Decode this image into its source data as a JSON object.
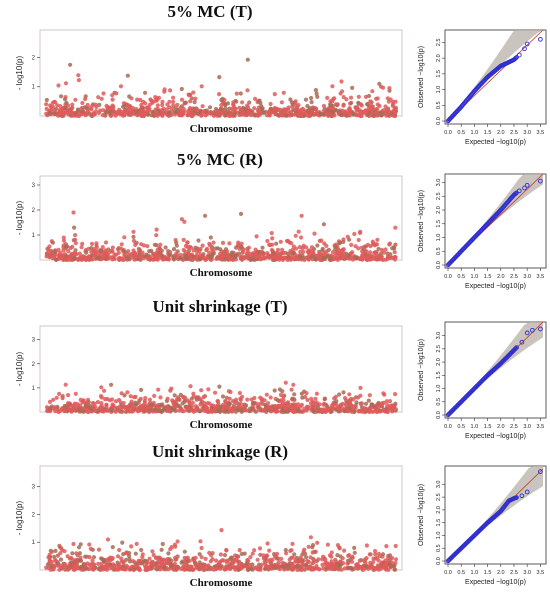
{
  "chart_data": [
    {
      "type": "scatter",
      "title": "5% MC (T)",
      "manhattan": {
        "xlabel": "Chromosome",
        "ylabel": "- log10(p)",
        "yticks": [
          1,
          2
        ],
        "ylim": [
          0,
          2.8
        ],
        "n_points": 900,
        "seed": 11
      },
      "qq": {
        "xlabel": "Expected −log10(p)",
        "ylabel": "Observed −log10(p)",
        "xticks": [
          "0.0",
          "0.5",
          "1.0",
          "1.5",
          "2.0",
          "2.5",
          "3.0",
          "3.5"
        ],
        "yticks": [
          "0.0",
          "0.5",
          "1.0",
          "1.5",
          "2.0",
          "2.5"
        ],
        "xlim": [
          0,
          3.6
        ],
        "ylim": [
          0,
          2.8
        ],
        "points": [
          [
            0.0,
            0.0
          ],
          [
            0.5,
            0.45
          ],
          [
            1.0,
            0.95
          ],
          [
            1.5,
            1.4
          ],
          [
            2.0,
            1.75
          ],
          [
            2.5,
            1.95
          ],
          [
            2.7,
            2.1
          ],
          [
            2.9,
            2.3
          ],
          [
            3.0,
            2.45
          ],
          [
            3.5,
            2.6
          ]
        ]
      }
    },
    {
      "type": "scatter",
      "title": "5% MC (R)",
      "manhattan": {
        "xlabel": "Chromosome",
        "ylabel": "- log10(p)",
        "yticks": [
          1,
          2,
          3
        ],
        "ylim": [
          0,
          3.2
        ],
        "n_points": 900,
        "seed": 23
      },
      "qq": {
        "xlabel": "Expected −log10(p)",
        "ylabel": "Observed −log10(p)",
        "xticks": [
          "0.0",
          "0.5",
          "1.0",
          "1.5",
          "2.0",
          "2.5",
          "3.0",
          "3.5"
        ],
        "yticks": [
          "0.0",
          "0.5",
          "1.0",
          "1.5",
          "2.0",
          "2.5",
          "3.0"
        ],
        "xlim": [
          0,
          3.6
        ],
        "ylim": [
          0,
          3.2
        ],
        "points": [
          [
            0.0,
            0.0
          ],
          [
            0.5,
            0.5
          ],
          [
            1.0,
            1.0
          ],
          [
            1.5,
            1.5
          ],
          [
            2.0,
            2.0
          ],
          [
            2.5,
            2.55
          ],
          [
            2.7,
            2.7
          ],
          [
            2.9,
            2.8
          ],
          [
            3.0,
            2.9
          ],
          [
            3.5,
            3.05
          ]
        ]
      }
    },
    {
      "type": "scatter",
      "title": "Unit shrinkage (T)",
      "manhattan": {
        "xlabel": "Chromosome",
        "ylabel": "- log10(p)",
        "yticks": [
          1,
          2,
          3
        ],
        "ylim": [
          0,
          3.4
        ],
        "n_points": 900,
        "seed": 37
      },
      "qq": {
        "xlabel": "Expected −log10(p)",
        "ylabel": "Observed −log10(p)",
        "xticks": [
          "0.0",
          "0.5",
          "1.0",
          "1.5",
          "2.0",
          "2.5",
          "3.0",
          "3.5"
        ],
        "yticks": [
          "0.0",
          "0.5",
          "1.0",
          "1.5",
          "2.0",
          "2.5",
          "3.0"
        ],
        "xlim": [
          0,
          3.6
        ],
        "ylim": [
          0,
          3.4
        ],
        "points": [
          [
            0.0,
            0.0
          ],
          [
            0.5,
            0.5
          ],
          [
            1.0,
            1.0
          ],
          [
            1.5,
            1.5
          ],
          [
            2.0,
            1.95
          ],
          [
            2.5,
            2.45
          ],
          [
            2.8,
            2.75
          ],
          [
            3.0,
            3.1
          ],
          [
            3.2,
            3.2
          ],
          [
            3.5,
            3.25
          ]
        ]
      }
    },
    {
      "type": "scatter",
      "title": "Unit shrinkage (R)",
      "manhattan": {
        "xlabel": "Chromosome",
        "ylabel": "- log10(p)",
        "yticks": [
          1,
          2,
          3
        ],
        "ylim": [
          0,
          3.6
        ],
        "n_points": 900,
        "seed": 53
      },
      "qq": {
        "xlabel": "Expected −log10(p)",
        "ylabel": "Observed −log10(p)",
        "xticks": [
          "0.0",
          "0.5",
          "1.0",
          "1.5",
          "2.0",
          "2.5",
          "3.0",
          "3.5"
        ],
        "yticks": [
          "0.0",
          "0.5",
          "1.0",
          "1.5",
          "2.0",
          "2.5",
          "3.0"
        ],
        "xlim": [
          0,
          3.6
        ],
        "ylim": [
          0,
          3.6
        ],
        "points": [
          [
            0.0,
            0.0
          ],
          [
            0.5,
            0.5
          ],
          [
            1.0,
            1.0
          ],
          [
            1.5,
            1.5
          ],
          [
            2.0,
            1.95
          ],
          [
            2.3,
            2.35
          ],
          [
            2.5,
            2.45
          ],
          [
            2.8,
            2.55
          ],
          [
            3.0,
            2.7
          ],
          [
            3.5,
            3.5
          ]
        ]
      }
    }
  ],
  "colors": {
    "point": "#e05a5a",
    "point_dark": "#a86a55",
    "qq_point": "#2f2fd0",
    "ci_band": "#b8b0a8",
    "frame": "#cfc6cc"
  }
}
